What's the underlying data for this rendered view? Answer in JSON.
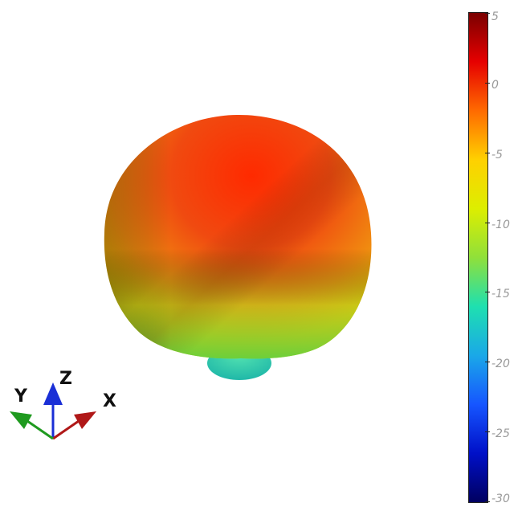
{
  "scene": {
    "triad": {
      "x_label": "X",
      "y_label": "Y",
      "z_label": "Z",
      "x_color": "#b01818",
      "y_color": "#1f9a1f",
      "z_color": "#1a2fd6"
    },
    "colorbar": {
      "ticks": [
        "5",
        "0",
        "-5",
        "-10",
        "-15",
        "-20",
        "-25",
        "-30"
      ],
      "max": 5,
      "min": -30,
      "gradient_stops": [
        "#7a0000",
        "#e60000",
        "#ff6a00",
        "#ffd000",
        "#ddee00",
        "#90e03a",
        "#1ee0b0",
        "#1aa8e8",
        "#1656ff",
        "#0010c8",
        "#000060"
      ]
    }
  },
  "chart_data": {
    "type": "heatmap",
    "title": "",
    "colorbar_range": [
      -30,
      5
    ],
    "colorbar_ticks": [
      5,
      0,
      -5,
      -10,
      -15,
      -20,
      -25,
      -30
    ]
  }
}
